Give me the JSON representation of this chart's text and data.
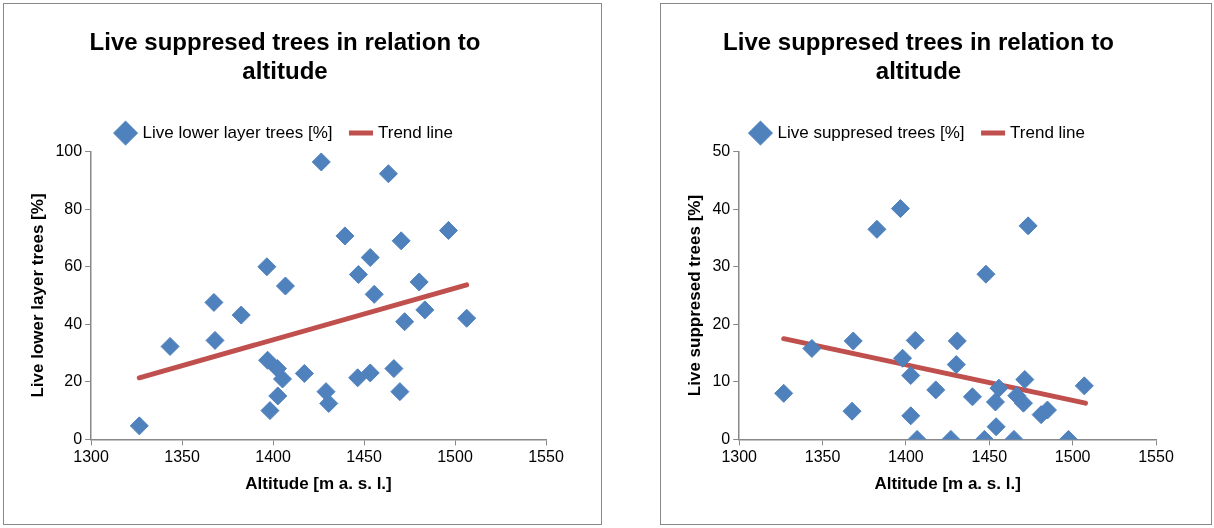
{
  "chart_data": [
    {
      "type": "scatter",
      "title": "Live suppresed trees in relation to altitude",
      "xlabel": "Altitude [m a. s. l.]",
      "ylabel": "Live lower layer trees [%]",
      "xlim": [
        1300,
        1550
      ],
      "xticks": [
        1300,
        1350,
        1400,
        1450,
        1500,
        1550
      ],
      "ylim": [
        0,
        100
      ],
      "yticks": [
        0,
        20,
        40,
        60,
        80,
        100
      ],
      "grid": false,
      "legend": "top",
      "series": [
        {
          "name": "Live lower layer trees [%]",
          "color": "#4f81bd",
          "marker": "diamond",
          "x": [
            1326.5,
            1343.4,
            1367.5,
            1368.1,
            1382.5,
            1396.6,
            1397,
            1402.4,
            1405.2,
            1402.6,
            1398.3,
            1406.8,
            1417.2,
            1426.5,
            1429.1,
            1430.6,
            1439.5,
            1446.9,
            1446.5,
            1453.4,
            1453.4,
            1455.6,
            1463.4,
            1466.4,
            1469.7,
            1470.4,
            1472.3,
            1480.3,
            1483.4,
            1496.4,
            1506.4
          ],
          "values": [
            4.7,
            32.3,
            47.6,
            34.4,
            43.2,
            60,
            27.5,
            24.6,
            21,
            15.1,
            10,
            53.3,
            22.9,
            96.4,
            16.6,
            12.5,
            70.7,
            57.3,
            21.4,
            23.1,
            63.2,
            50.4,
            92.3,
            24.6,
            16.6,
            69,
            40.9,
            54.7,
            45,
            72.6,
            42.1
          ]
        },
        {
          "name": "Trend line",
          "type": "line",
          "color": "#c0504d",
          "marker": "none",
          "line_style": "solid",
          "x": [
            1326.5,
            1506.4
          ],
          "values": [
            21.4,
            53.7
          ]
        }
      ]
    },
    {
      "type": "scatter",
      "title": "Live suppresed trees in relation to altitude",
      "xlabel": "Altitude [m a. s. l.]",
      "ylabel": "Live suppresed trees [%]",
      "xlim": [
        1300,
        1550
      ],
      "xticks": [
        1300,
        1350,
        1400,
        1450,
        1500,
        1550
      ],
      "ylim": [
        0,
        50
      ],
      "yticks": [
        0,
        10,
        20,
        30,
        40,
        50
      ],
      "grid": false,
      "legend": "top",
      "series": [
        {
          "name": "Live suppresed trees [%]",
          "color": "#4f81bd",
          "marker": "diamond",
          "x": [
            1326.7,
            1343.6,
            1367.7,
            1368.4,
            1382.6,
            1396.7,
            1398,
            1402.9,
            1402.9,
            1405.6,
            1406.7,
            1417.9,
            1427,
            1430.8,
            1430.2,
            1439.9,
            1448,
            1447.1,
            1454.1,
            1455.8,
            1453.7,
            1464.8,
            1466.5,
            1470.5,
            1471.3,
            1473.3,
            1481.1,
            1484.9,
            1497.5,
            1507
          ],
          "values": [
            8,
            15.8,
            4.9,
            17.1,
            36.5,
            40.1,
            14.1,
            11.1,
            4.1,
            17.2,
            0,
            8.6,
            0,
            17.1,
            13,
            7.4,
            28.7,
            0,
            2.2,
            8.9,
            6.5,
            0,
            7.6,
            6.3,
            10.4,
            37.1,
            4.3,
            5.1,
            0,
            9.3
          ]
        },
        {
          "name": "Trend line",
          "type": "line",
          "color": "#c0504d",
          "marker": "none",
          "line_style": "solid",
          "x": [
            1326.7,
            1507.7
          ],
          "values": [
            17.5,
            6.3
          ]
        }
      ]
    }
  ]
}
